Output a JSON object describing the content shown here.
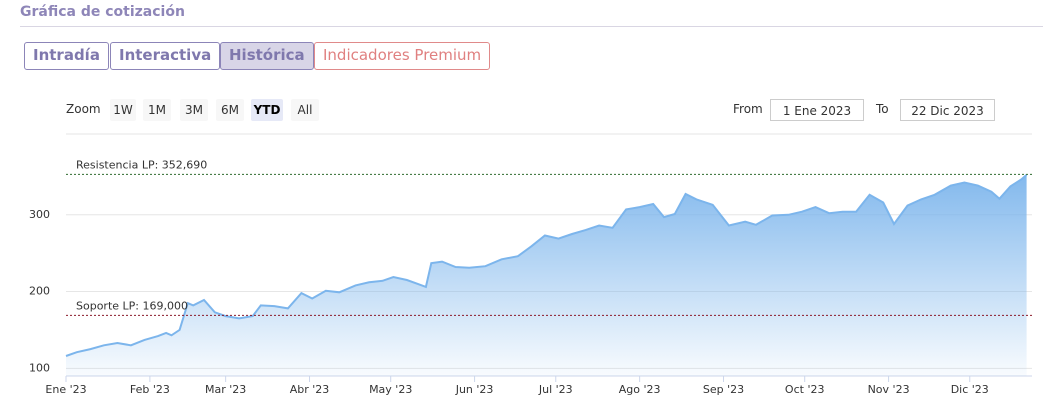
{
  "header": {
    "title": "Gráfica de cotización"
  },
  "tabs": [
    "Intradía",
    "Interactiva",
    "Histórica",
    "Indicadores Premium"
  ],
  "zoom": {
    "label": "Zoom",
    "buttons": [
      "1W",
      "1M",
      "3M",
      "6M",
      "YTD",
      "All"
    ]
  },
  "range": {
    "from_label": "From",
    "from": "1 Ene 2023",
    "to_label": "To",
    "to": "22 Dic 2023"
  },
  "chart_data": {
    "type": "area",
    "color": "#7cb5ec",
    "x": [
      1,
      5,
      10,
      15,
      20,
      25,
      30,
      35,
      38,
      40,
      43,
      46,
      48,
      52,
      56,
      60,
      65,
      70,
      73,
      78,
      83,
      88,
      92,
      97,
      102,
      108,
      113,
      118,
      122,
      127,
      131,
      134,
      136,
      140,
      145,
      150,
      156,
      162,
      168,
      173,
      178,
      183,
      188,
      193,
      198,
      203,
      208,
      213,
      218,
      222,
      226,
      230,
      234,
      240,
      246,
      252,
      256,
      262,
      268,
      273,
      278,
      283,
      288,
      293,
      298,
      303,
      307,
      312,
      317,
      322,
      328,
      333,
      338,
      343,
      346,
      350,
      354,
      356
    ],
    "values": [
      116,
      121,
      125,
      130,
      133,
      130,
      137,
      142,
      146,
      143,
      150,
      185,
      182,
      189,
      173,
      168,
      165,
      168,
      182,
      181,
      178,
      198,
      191,
      201,
      199,
      208,
      212,
      214,
      219,
      215,
      210,
      206,
      237,
      239,
      232,
      231,
      233,
      242,
      246,
      259,
      273,
      269,
      275,
      280,
      286,
      283,
      307,
      310,
      314,
      297,
      301,
      327,
      320,
      313,
      286,
      291,
      287,
      299,
      300,
      304,
      310,
      302,
      304,
      304,
      326,
      316,
      288,
      312,
      320,
      326,
      338,
      342,
      338,
      330,
      321,
      337,
      346,
      352
    ],
    "xlim": [
      1,
      358
    ],
    "ylim": [
      90,
      400
    ],
    "xticks": [
      {
        "value": 1,
        "label": "Ene '23"
      },
      {
        "value": 32,
        "label": "Feb '23"
      },
      {
        "value": 60,
        "label": "Mar '23"
      },
      {
        "value": 91,
        "label": "Abr '23"
      },
      {
        "value": 121,
        "label": "May '23"
      },
      {
        "value": 152,
        "label": "Jun '23"
      },
      {
        "value": 182,
        "label": "Jul '23"
      },
      {
        "value": 213,
        "label": "Ago '23"
      },
      {
        "value": 244,
        "label": "Sep '23"
      },
      {
        "value": 274,
        "label": "Oct '23"
      },
      {
        "value": 305,
        "label": "Nov '23"
      },
      {
        "value": 335,
        "label": "Dic '23"
      }
    ],
    "yticks": [
      100,
      200,
      300
    ],
    "grid": true,
    "annotations": [
      {
        "label": "Resistencia LP: 352,690",
        "value": 352.69,
        "color": "#2e6b2e"
      },
      {
        "label": "Soporte LP: 169,000",
        "value": 169,
        "color": "#8b1a2b"
      }
    ]
  }
}
